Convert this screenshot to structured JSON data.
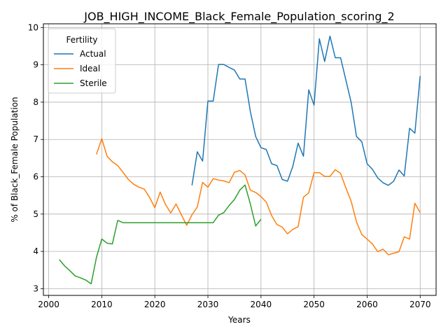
{
  "chart_data": {
    "type": "line",
    "title": "JOB_HIGH_INCOME_Black_Female_Population_scoring_2",
    "xlabel": "Years",
    "ylabel": "% of Black_Female Population",
    "xlim": [
      1999,
      2073
    ],
    "ylim": [
      2.82,
      10.1
    ],
    "xticks": [
      2000,
      2010,
      2020,
      2030,
      2040,
      2050,
      2060,
      2070
    ],
    "yticks": [
      3,
      4,
      5,
      6,
      7,
      8,
      9,
      10
    ],
    "grid": true,
    "legend": {
      "title": "Fertility",
      "placement": "upper-left"
    },
    "series": [
      {
        "name": "Actual",
        "color": "#1f77b4",
        "x": [
          2027,
          2028,
          2029,
          2030,
          2031,
          2032,
          2033,
          2034,
          2035,
          2036,
          2037,
          2038,
          2039,
          2040,
          2041,
          2042,
          2043,
          2044,
          2045,
          2046,
          2047,
          2048,
          2049,
          2050,
          2051,
          2052,
          2053,
          2054,
          2055,
          2056,
          2057,
          2058,
          2059,
          2060,
          2061,
          2062,
          2063,
          2064,
          2065,
          2066,
          2067,
          2068,
          2069,
          2070
        ],
        "y": [
          5.77,
          6.67,
          6.42,
          8.03,
          8.03,
          9.01,
          9.01,
          8.93,
          8.86,
          8.62,
          8.62,
          7.75,
          7.08,
          6.78,
          6.73,
          6.35,
          6.3,
          5.93,
          5.88,
          6.28,
          6.9,
          6.55,
          8.33,
          7.92,
          9.7,
          9.09,
          9.77,
          9.19,
          9.19,
          8.59,
          7.99,
          7.08,
          6.94,
          6.35,
          6.2,
          5.97,
          5.84,
          5.77,
          5.88,
          6.18,
          6.02,
          7.3,
          7.17,
          8.7
        ]
      },
      {
        "name": "Ideal",
        "color": "#ff7f0e",
        "x": [
          2009,
          2010,
          2011,
          2012,
          2013,
          2014,
          2015,
          2016,
          2017,
          2018,
          2019,
          2020,
          2021,
          2022,
          2023,
          2024,
          2025,
          2026,
          2027,
          2028,
          2029,
          2030,
          2031,
          2032,
          2033,
          2034,
          2035,
          2036,
          2037,
          2038,
          2039,
          2040,
          2041,
          2042,
          2043,
          2044,
          2045,
          2046,
          2047,
          2048,
          2049,
          2050,
          2051,
          2052,
          2053,
          2054,
          2055,
          2056,
          2057,
          2058,
          2059,
          2060,
          2061,
          2062,
          2063,
          2064,
          2065,
          2066,
          2067,
          2068,
          2069,
          2070
        ],
        "y": [
          6.6,
          7.02,
          6.55,
          6.4,
          6.3,
          6.12,
          5.93,
          5.8,
          5.72,
          5.67,
          5.45,
          5.17,
          5.59,
          5.26,
          5.03,
          5.27,
          4.98,
          4.7,
          4.98,
          5.19,
          5.85,
          5.72,
          5.95,
          5.91,
          5.89,
          5.84,
          6.12,
          6.17,
          6.05,
          5.64,
          5.58,
          5.47,
          5.32,
          4.96,
          4.72,
          4.65,
          4.47,
          4.59,
          4.66,
          5.45,
          5.57,
          6.11,
          6.11,
          6.01,
          6.01,
          6.19,
          6.09,
          5.7,
          5.34,
          4.79,
          4.45,
          4.33,
          4.2,
          3.99,
          4.06,
          3.91,
          3.95,
          3.99,
          4.39,
          4.33,
          5.29,
          5.04
        ]
      },
      {
        "name": "Sterile",
        "color": "#2ca02c",
        "x": [
          2002,
          2003,
          2004,
          2005,
          2006,
          2007,
          2008,
          2009,
          2010,
          2011,
          2012,
          2013,
          2014,
          2015,
          2016,
          2017,
          2018,
          2019,
          2020,
          2021,
          2022,
          2023,
          2024,
          2025,
          2026,
          2027,
          2028,
          2029,
          2030,
          2031,
          2032,
          2033,
          2034,
          2035,
          2036,
          2037,
          2038,
          2039,
          2040
        ],
        "y": [
          3.78,
          3.61,
          3.48,
          3.34,
          3.29,
          3.23,
          3.13,
          3.84,
          4.33,
          4.22,
          4.2,
          4.83,
          4.77,
          4.77,
          4.77,
          4.77,
          4.77,
          4.77,
          4.77,
          4.77,
          4.77,
          4.77,
          4.77,
          4.77,
          4.77,
          4.77,
          4.77,
          4.77,
          4.77,
          4.77,
          4.97,
          5.04,
          5.23,
          5.39,
          5.64,
          5.78,
          5.27,
          4.68,
          4.86
        ]
      }
    ]
  }
}
